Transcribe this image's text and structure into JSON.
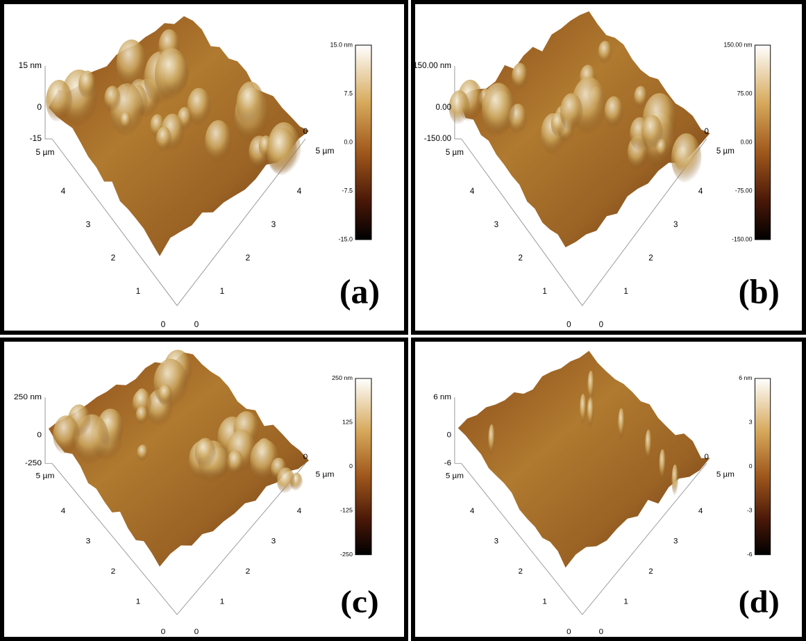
{
  "panels": [
    {
      "label": "(a)",
      "z_axis": [
        "15 nm",
        "0",
        "-15"
      ],
      "left_axis": [
        "0",
        "1",
        "2",
        "3",
        "4",
        "5 µm"
      ],
      "right_axis": [
        "0",
        "1",
        "2",
        "3",
        "4",
        "5 µm"
      ],
      "corner": "0",
      "colorbar": [
        "15.0 nm",
        "7.5",
        "0.0",
        "-7.5",
        "-15.0"
      ]
    },
    {
      "label": "(b)",
      "z_axis": [
        "150.00 nm",
        "0.00",
        "-150.00"
      ],
      "left_axis": [
        "0",
        "1",
        "2",
        "3",
        "4",
        "5 µm"
      ],
      "right_axis": [
        "0",
        "1",
        "2",
        "3",
        "4",
        "5 µm"
      ],
      "corner": "0",
      "colorbar": [
        "150.00 nm",
        "75.00",
        "0.00",
        "-75.00",
        "-150.00"
      ]
    },
    {
      "label": "(c)",
      "z_axis": [
        "250 nm",
        "0",
        "-250"
      ],
      "left_axis": [
        "0",
        "1",
        "2",
        "3",
        "4",
        "5 µm"
      ],
      "right_axis": [
        "0",
        "1",
        "2",
        "3",
        "4",
        "5 µm"
      ],
      "corner": "0",
      "colorbar": [
        "250 nm",
        "125",
        "0",
        "-125",
        "-250"
      ]
    },
    {
      "label": "(d)",
      "z_axis": [
        "6 nm",
        "0",
        "-6"
      ],
      "left_axis": [
        "0",
        "1",
        "2",
        "3",
        "4",
        "5 µm"
      ],
      "right_axis": [
        "0",
        "1",
        "2",
        "3",
        "4",
        "5 µm"
      ],
      "corner": "0",
      "colorbar": [
        "6 nm",
        "3",
        "0",
        "-3",
        "-6"
      ]
    }
  ]
}
